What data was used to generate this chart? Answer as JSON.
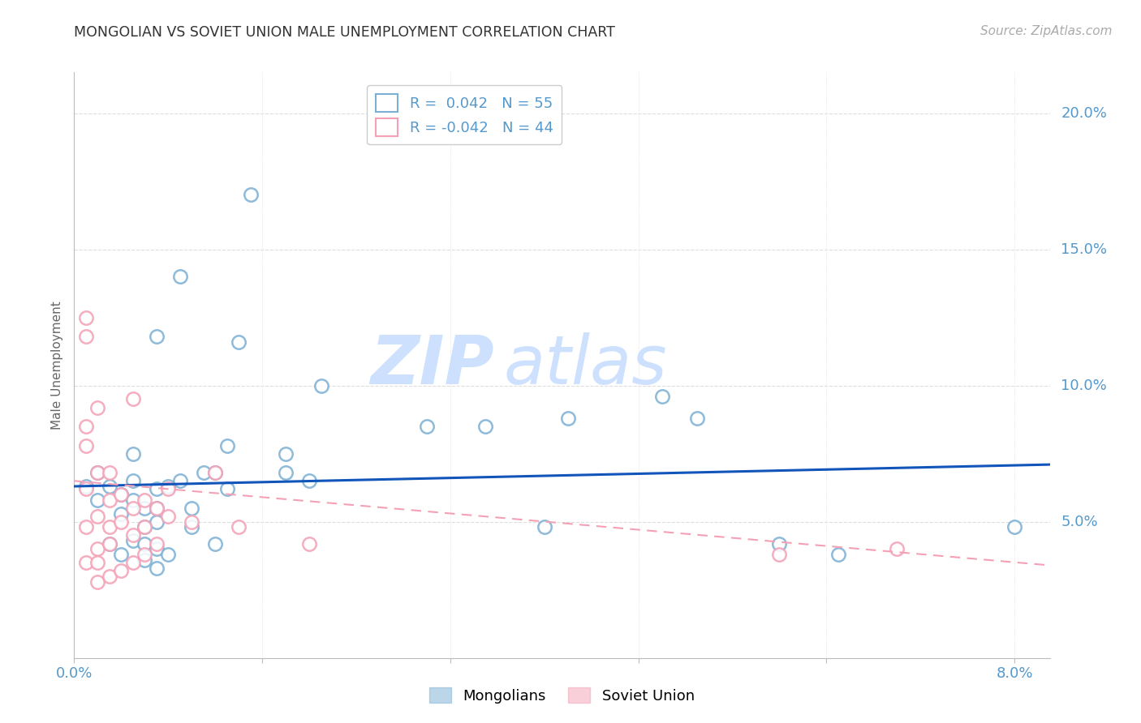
{
  "title": "MONGOLIAN VS SOVIET UNION MALE UNEMPLOYMENT CORRELATION CHART",
  "source": "Source: ZipAtlas.com",
  "ylabel": "Male Unemployment",
  "xlim": [
    0.0,
    0.083
  ],
  "ylim": [
    0.0,
    0.215
  ],
  "yticks": [
    0.05,
    0.1,
    0.15,
    0.2
  ],
  "ytick_labels": [
    "5.0%",
    "10.0%",
    "15.0%",
    "20.0%"
  ],
  "xticks": [
    0.0,
    0.016,
    0.032,
    0.048,
    0.064,
    0.08
  ],
  "xtick_labels": [
    "0.0%",
    "",
    "",
    "",
    "",
    "8.0%"
  ],
  "blue_R": "0.042",
  "blue_N": "55",
  "pink_R": "-0.042",
  "pink_N": "44",
  "blue_edge_color": "#7BAFD4",
  "pink_edge_color": "#F4A0B5",
  "trend_blue_color": "#1155BB",
  "trend_pink_color": "#F4A0B5",
  "watermark_text": "ZIPatlas",
  "watermark_color": "#D8EEFF",
  "background_color": "#FFFFFF",
  "grid_color": "#DDDDDD",
  "axis_label_color": "#5599CC",
  "title_color": "#333333",
  "blue_scatter_x": [
    0.001,
    0.002,
    0.002,
    0.003,
    0.003,
    0.004,
    0.004,
    0.004,
    0.005,
    0.005,
    0.005,
    0.005,
    0.006,
    0.006,
    0.006,
    0.006,
    0.007,
    0.007,
    0.007,
    0.007,
    0.007,
    0.007,
    0.008,
    0.008,
    0.009,
    0.009,
    0.01,
    0.01,
    0.011,
    0.012,
    0.012,
    0.013,
    0.013,
    0.014,
    0.015,
    0.018,
    0.018,
    0.02,
    0.021,
    0.03,
    0.035,
    0.04,
    0.042,
    0.05,
    0.053,
    0.06,
    0.065,
    0.08
  ],
  "blue_scatter_y": [
    0.063,
    0.058,
    0.068,
    0.063,
    0.042,
    0.06,
    0.053,
    0.038,
    0.065,
    0.075,
    0.058,
    0.043,
    0.055,
    0.048,
    0.042,
    0.036,
    0.062,
    0.118,
    0.055,
    0.05,
    0.04,
    0.033,
    0.063,
    0.038,
    0.14,
    0.065,
    0.055,
    0.048,
    0.068,
    0.068,
    0.042,
    0.062,
    0.078,
    0.116,
    0.17,
    0.068,
    0.075,
    0.065,
    0.1,
    0.085,
    0.085,
    0.048,
    0.088,
    0.096,
    0.088,
    0.042,
    0.038,
    0.048
  ],
  "pink_scatter_x": [
    0.001,
    0.001,
    0.001,
    0.001,
    0.001,
    0.001,
    0.001,
    0.002,
    0.002,
    0.002,
    0.002,
    0.002,
    0.002,
    0.003,
    0.003,
    0.003,
    0.003,
    0.003,
    0.004,
    0.004,
    0.004,
    0.005,
    0.005,
    0.005,
    0.005,
    0.006,
    0.006,
    0.006,
    0.007,
    0.007,
    0.008,
    0.008,
    0.01,
    0.012,
    0.014,
    0.02,
    0.06,
    0.07
  ],
  "pink_scatter_y": [
    0.125,
    0.118,
    0.085,
    0.078,
    0.062,
    0.048,
    0.035,
    0.092,
    0.068,
    0.052,
    0.04,
    0.035,
    0.028,
    0.068,
    0.058,
    0.048,
    0.042,
    0.03,
    0.06,
    0.05,
    0.032,
    0.095,
    0.055,
    0.045,
    0.035,
    0.058,
    0.048,
    0.038,
    0.055,
    0.042,
    0.062,
    0.052,
    0.05,
    0.068,
    0.048,
    0.042,
    0.038,
    0.04
  ],
  "trend_blue_x0": 0.0,
  "trend_blue_y0": 0.063,
  "trend_blue_x1": 0.083,
  "trend_blue_y1": 0.071,
  "trend_pink_x0": 0.0,
  "trend_pink_y0": 0.065,
  "trend_pink_x1": 0.083,
  "trend_pink_y1": 0.034
}
